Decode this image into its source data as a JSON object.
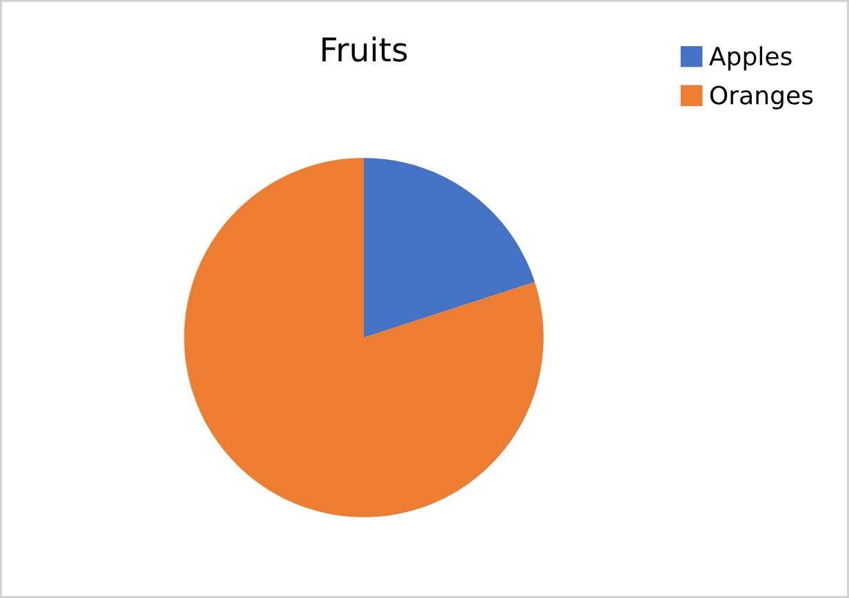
{
  "chart_data": {
    "type": "pie",
    "title": "Fruits",
    "categories": [
      "Apples",
      "Oranges"
    ],
    "values": [
      20,
      80
    ],
    "colors": [
      "#4472c4",
      "#ed7d31"
    ],
    "legend": "top right"
  }
}
